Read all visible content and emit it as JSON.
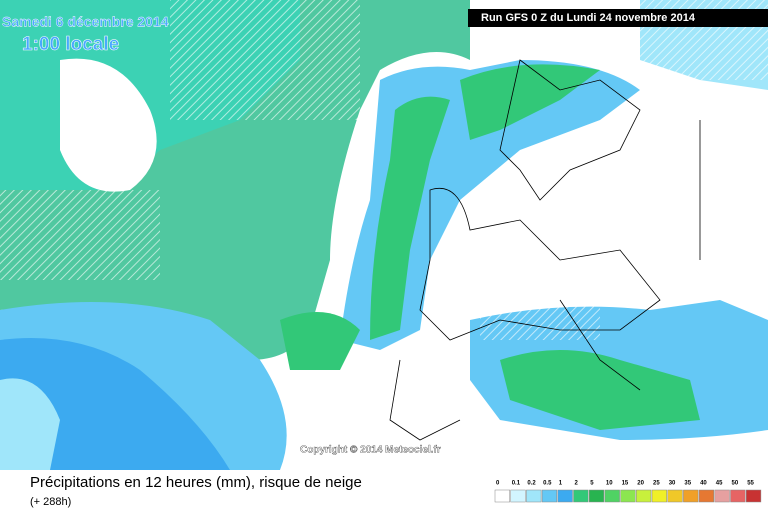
{
  "header": {
    "date": "Samedi 6 décembre 2014",
    "time": "1:00 locale",
    "run": "Run GFS 0 Z du Lundi 24 novembre 2014"
  },
  "copyright": "Copyright © 2014 Meteociel.fr",
  "footer": {
    "title": "Précipitations en 12 heures (mm), risque de neige",
    "lead": "(+ 288h)"
  },
  "legend": {
    "labels": [
      0,
      0.1,
      0.2,
      0.5,
      1,
      2,
      5,
      10,
      15,
      20,
      25,
      30,
      35,
      40,
      45,
      50,
      55
    ],
    "colors": [
      "#ffffff",
      "#d2f5ff",
      "#a0e6fa",
      "#64c8f5",
      "#3caaf0",
      "#32c878",
      "#28b450",
      "#50d264",
      "#8ce650",
      "#c8f03c",
      "#f0f028",
      "#f0c828",
      "#f0a028",
      "#e67832",
      "#e6a0a0",
      "#e66464",
      "#c83232"
    ]
  }
}
